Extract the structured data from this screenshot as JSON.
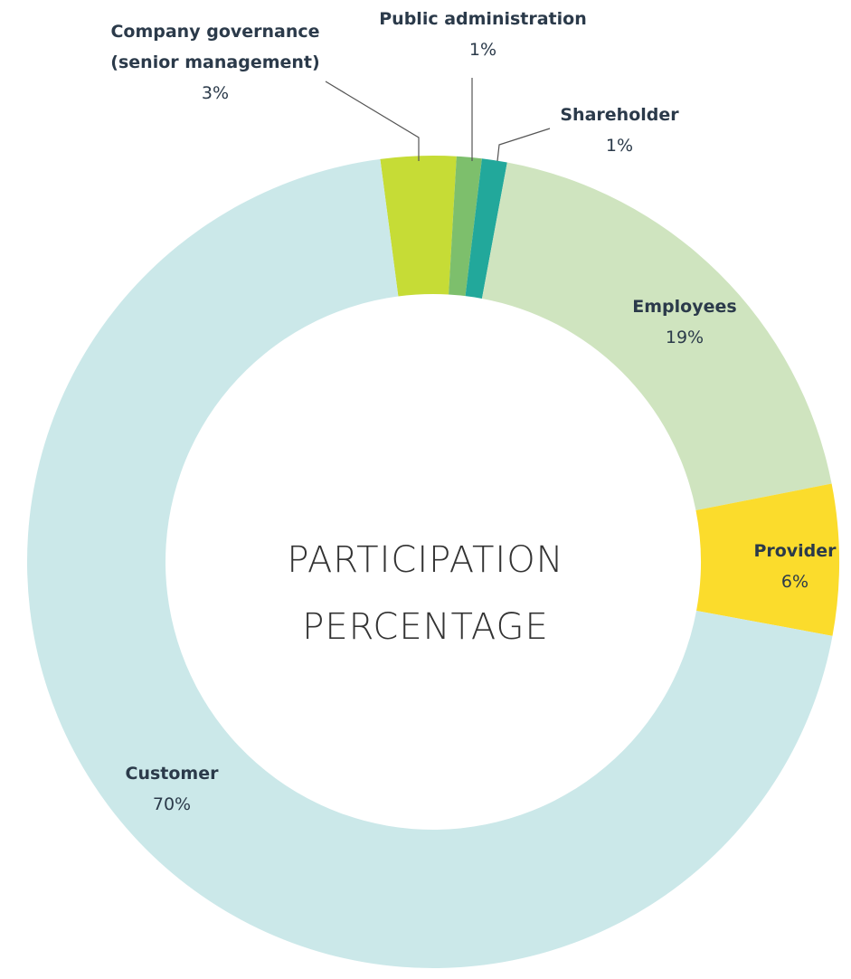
{
  "chart_data": {
    "type": "donut",
    "center_text": [
      "PARTICIPATION",
      "PERCENTAGE"
    ],
    "categories": [
      "Company governance (senior management)",
      "Public administration",
      "Shareholder",
      "Employees",
      "Provider",
      "Customer"
    ],
    "values": [
      3,
      1,
      1,
      19,
      6,
      70
    ],
    "value_labels": [
      "3%",
      "1%",
      "1%",
      "19%",
      "6%",
      "70%"
    ],
    "colors": [
      "#c6dc36",
      "#7dbf6c",
      "#22a89b",
      "#cfe4bf",
      "#fbdc2c",
      "#cbe8e9"
    ]
  }
}
